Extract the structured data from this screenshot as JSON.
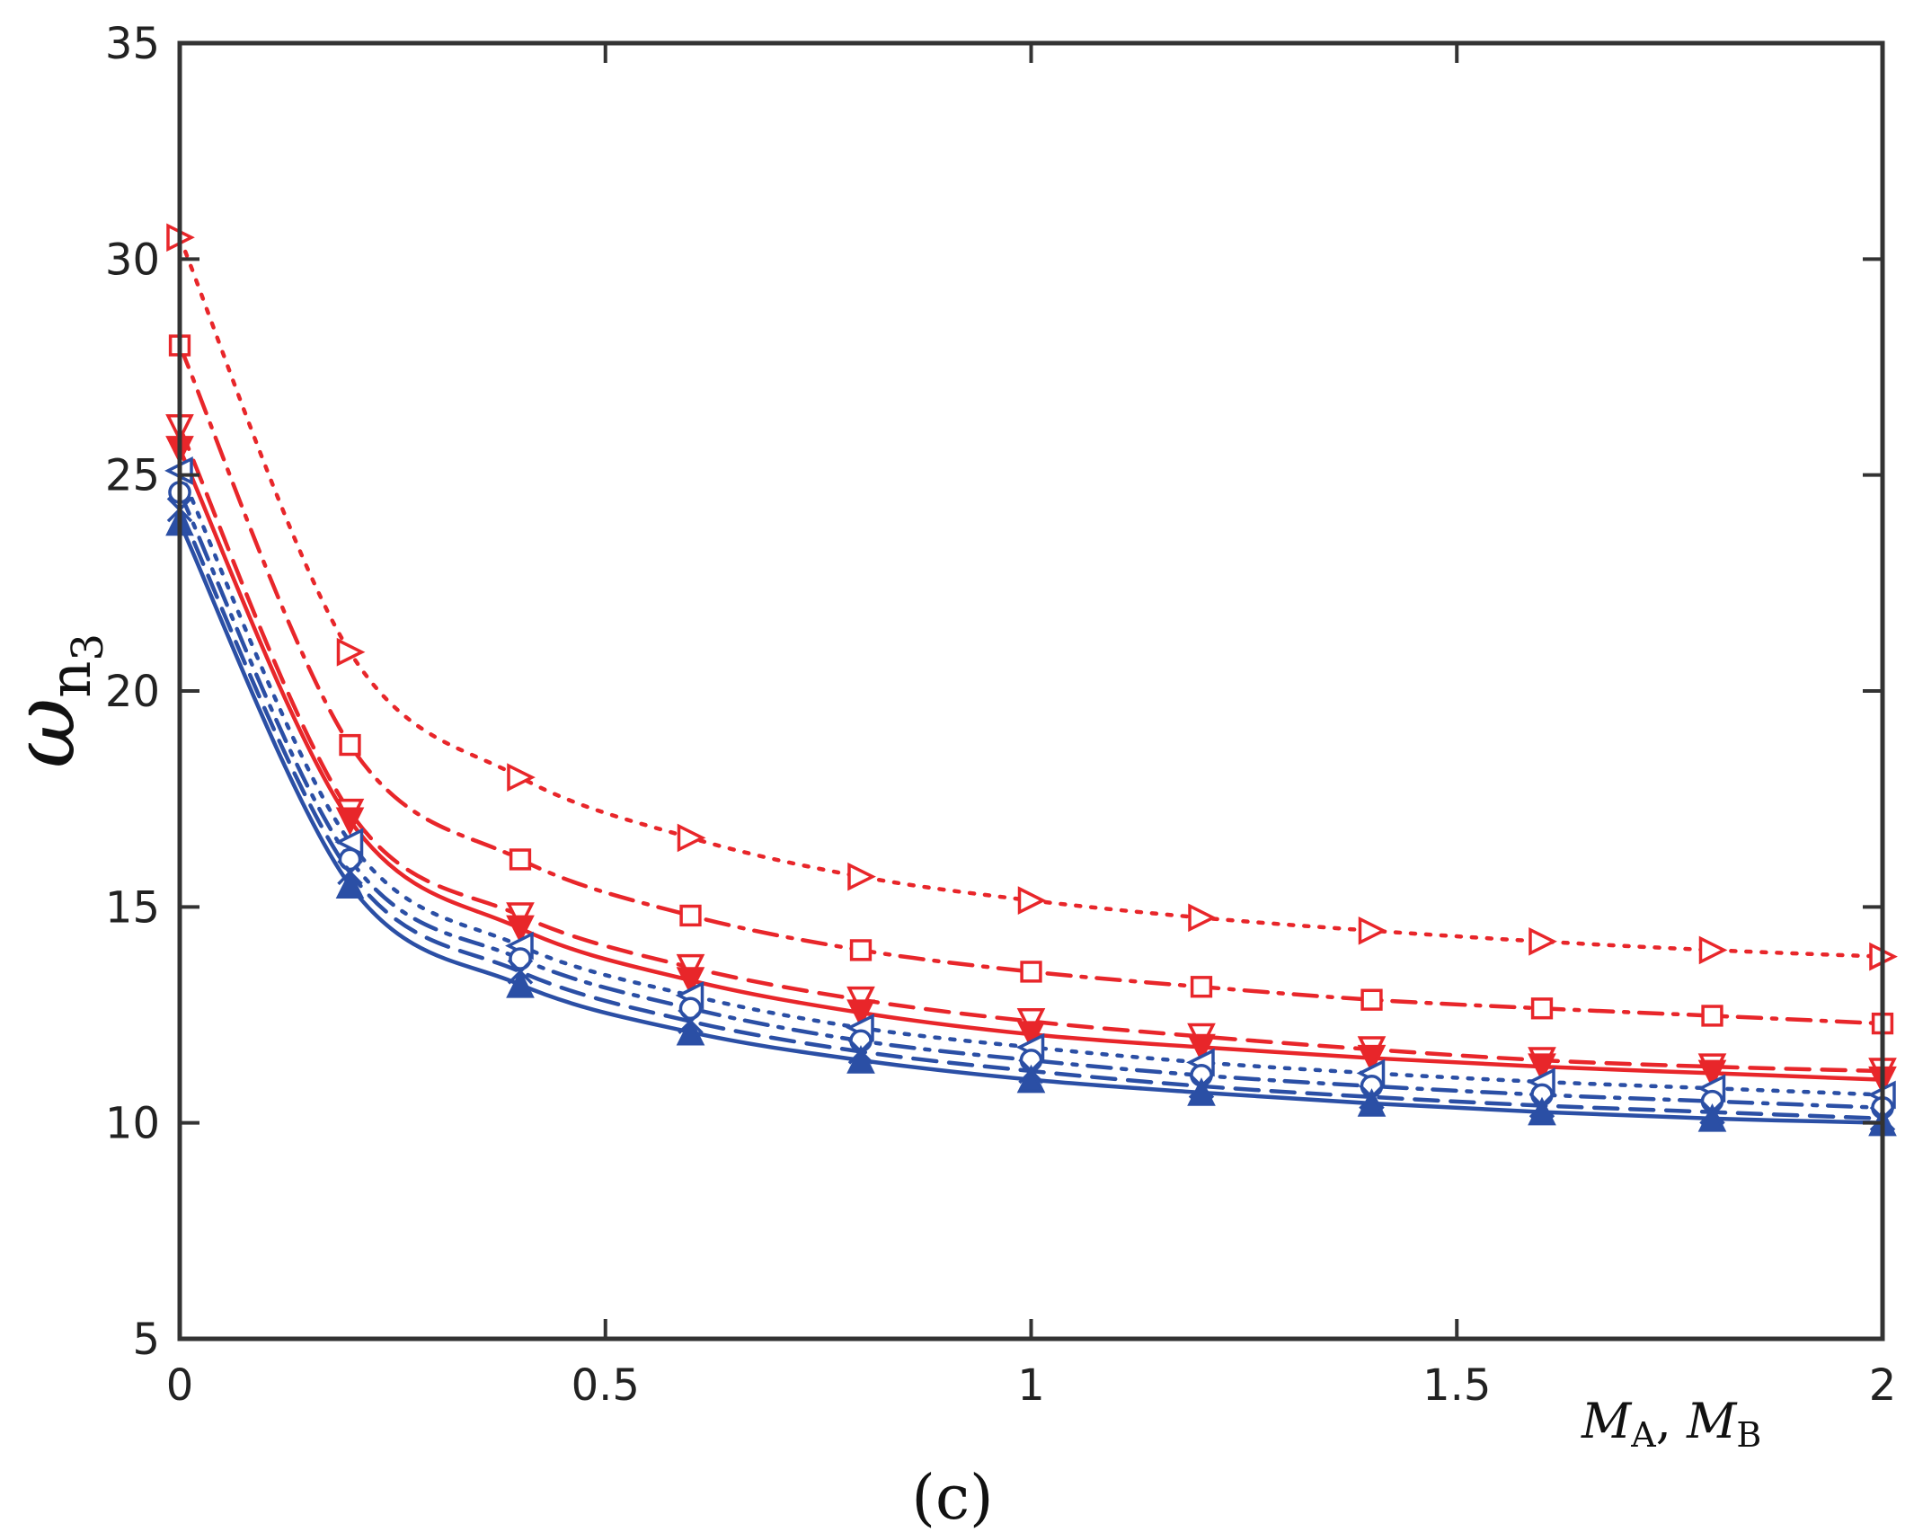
{
  "chart_data": {
    "type": "line",
    "title": "",
    "caption": "(c)",
    "ylabel": {
      "symbol": "ω",
      "subscript": "n",
      "subsubscript": "3"
    },
    "xlabel": {
      "var1": "M",
      "sub1": "A",
      "separator": ", ",
      "var2": "M",
      "sub2": "B"
    },
    "xlim": [
      0,
      2
    ],
    "ylim": [
      5,
      35
    ],
    "xticks": [
      0,
      0.5,
      1,
      1.5,
      2
    ],
    "xtick_labels": [
      "0",
      "0.5",
      "1",
      "1.5",
      "2"
    ],
    "yticks": [
      5,
      10,
      15,
      20,
      25,
      30,
      35
    ],
    "ytick_labels": [
      "5",
      "10",
      "15",
      "20",
      "25",
      "30",
      "35"
    ],
    "grid": false,
    "x": [
      0,
      0.2,
      0.4,
      0.6,
      0.8,
      1.0,
      1.2,
      1.4,
      1.6,
      1.8,
      2.0
    ],
    "series": [
      {
        "name": "red dotted ▷",
        "color": "#e8262a",
        "dash": "dotted",
        "marker": "triangle-right-open",
        "values": [
          30.5,
          20.9,
          18.0,
          16.6,
          15.7,
          15.15,
          14.75,
          14.45,
          14.2,
          14.0,
          13.85
        ]
      },
      {
        "name": "red dash-dot □",
        "color": "#e8262a",
        "dash": "dashdot",
        "marker": "square-open",
        "values": [
          28.0,
          18.75,
          16.1,
          14.8,
          14.0,
          13.5,
          13.15,
          12.85,
          12.65,
          12.48,
          12.3
        ]
      },
      {
        "name": "red dashed ▽",
        "color": "#e8262a",
        "dash": "dashed",
        "marker": "triangle-down-open",
        "values": [
          26.1,
          17.2,
          14.8,
          13.6,
          12.85,
          12.35,
          12.0,
          11.7,
          11.45,
          11.3,
          11.2
        ]
      },
      {
        "name": "red solid ▼",
        "color": "#e8262a",
        "dash": "solid",
        "marker": "triangle-down-filled",
        "values": [
          25.6,
          17.0,
          14.5,
          13.3,
          12.55,
          12.05,
          11.75,
          11.5,
          11.3,
          11.15,
          11.0
        ]
      },
      {
        "name": "blue dotted ◁",
        "color": "#2b4fa5",
        "dash": "dotted",
        "marker": "triangle-left-open",
        "values": [
          25.1,
          16.5,
          14.1,
          12.95,
          12.2,
          11.75,
          11.4,
          11.15,
          10.95,
          10.8,
          10.65
        ]
      },
      {
        "name": "blue dash-dot ○",
        "color": "#2b4fa5",
        "dash": "dashdot",
        "marker": "circle-open",
        "values": [
          24.6,
          16.1,
          13.8,
          12.65,
          11.9,
          11.45,
          11.1,
          10.85,
          10.65,
          10.5,
          10.35
        ]
      },
      {
        "name": "blue dashed ×",
        "color": "#2b4fa5",
        "dash": "dashed",
        "marker": "x",
        "values": [
          24.2,
          15.8,
          13.5,
          12.35,
          11.65,
          11.2,
          10.85,
          10.6,
          10.4,
          10.25,
          10.1
        ]
      },
      {
        "name": "blue solid ▲",
        "color": "#2b4fa5",
        "dash": "solid",
        "marker": "triangle-up-filled",
        "values": [
          23.9,
          15.5,
          13.2,
          12.1,
          11.45,
          11.0,
          10.7,
          10.45,
          10.25,
          10.1,
          10.0
        ]
      }
    ]
  }
}
